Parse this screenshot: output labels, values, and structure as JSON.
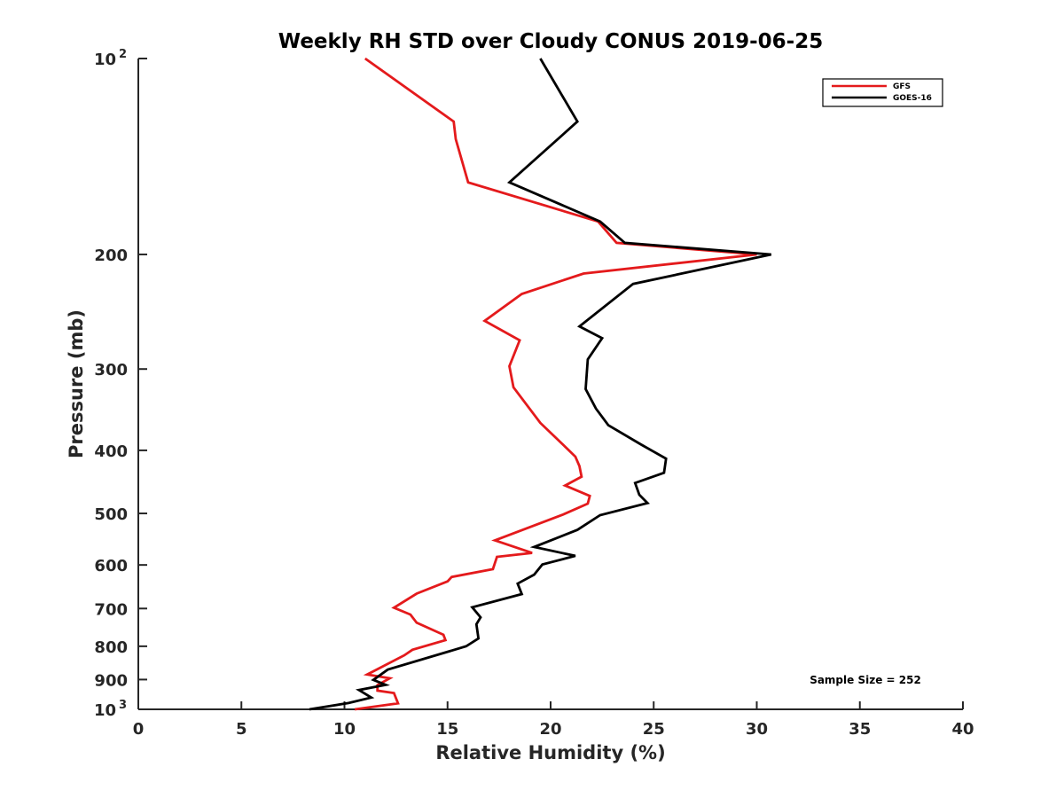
{
  "chart_data": {
    "type": "line",
    "title": "Weekly RH STD over Cloudy CONUS 2019-06-25",
    "xlabel": "Relative Humidity (%)",
    "ylabel": "Pressure (mb)",
    "xlim": [
      0,
      40
    ],
    "ylim": [
      100,
      1000
    ],
    "y_scale": "log",
    "y_reversed": true,
    "grid": false,
    "x_ticks": [
      {
        "value": 0,
        "label": "0"
      },
      {
        "value": 5,
        "label": "5"
      },
      {
        "value": 10,
        "label": "10"
      },
      {
        "value": 15,
        "label": "15"
      },
      {
        "value": 20,
        "label": "20"
      },
      {
        "value": 25,
        "label": "25"
      },
      {
        "value": 30,
        "label": "30"
      },
      {
        "value": 35,
        "label": "35"
      },
      {
        "value": 40,
        "label": "40"
      }
    ],
    "y_ticks": [
      {
        "value": 100,
        "label": "10",
        "sup": "2"
      },
      {
        "value": 200,
        "label": "200"
      },
      {
        "value": 300,
        "label": "300"
      },
      {
        "value": 400,
        "label": "400"
      },
      {
        "value": 500,
        "label": "500"
      },
      {
        "value": 600,
        "label": "600"
      },
      {
        "value": 700,
        "label": "700"
      },
      {
        "value": 800,
        "label": "800"
      },
      {
        "value": 900,
        "label": "900"
      },
      {
        "value": 1000,
        "label": "10",
        "sup": "3"
      }
    ],
    "legend_position": "top-right",
    "annotation": "Sample Size = 252",
    "series": [
      {
        "name": "GFS",
        "color": "#e41a1c",
        "points": [
          [
            11.0,
            100
          ],
          [
            15.3,
            125
          ],
          [
            15.4,
            133
          ],
          [
            16.0,
            155
          ],
          [
            22.3,
            178
          ],
          [
            23.2,
            192
          ],
          [
            30.0,
            200
          ],
          [
            21.6,
            214
          ],
          [
            18.6,
            230
          ],
          [
            16.8,
            253
          ],
          [
            18.5,
            271
          ],
          [
            18.0,
            297
          ],
          [
            18.2,
            320
          ],
          [
            19.5,
            363
          ],
          [
            20.6,
            392
          ],
          [
            21.2,
            409
          ],
          [
            21.4,
            423
          ],
          [
            21.5,
            439
          ],
          [
            20.7,
            453
          ],
          [
            21.9,
            470
          ],
          [
            21.8,
            483
          ],
          [
            20.6,
            502
          ],
          [
            17.3,
            550
          ],
          [
            19.1,
            575
          ],
          [
            17.4,
            583
          ],
          [
            17.2,
            609
          ],
          [
            15.2,
            626
          ],
          [
            15.0,
            636
          ],
          [
            13.5,
            664
          ],
          [
            12.4,
            698
          ],
          [
            13.2,
            715
          ],
          [
            13.5,
            736
          ],
          [
            14.8,
            768
          ],
          [
            14.9,
            783
          ],
          [
            13.3,
            810
          ],
          [
            12.9,
            826
          ],
          [
            11.1,
            884
          ],
          [
            12.2,
            896
          ],
          [
            11.6,
            918
          ],
          [
            11.6,
            936
          ],
          [
            12.4,
            944
          ],
          [
            12.6,
            979
          ],
          [
            10.5,
            1000
          ]
        ]
      },
      {
        "name": "GOES-16",
        "color": "#000000",
        "points": [
          [
            19.5,
            100
          ],
          [
            21.3,
            125
          ],
          [
            18.0,
            155
          ],
          [
            22.4,
            178
          ],
          [
            23.6,
            192
          ],
          [
            30.7,
            200
          ],
          [
            24.0,
            222
          ],
          [
            21.4,
            258
          ],
          [
            22.5,
            269
          ],
          [
            21.8,
            290
          ],
          [
            21.7,
            322
          ],
          [
            22.2,
            345
          ],
          [
            22.8,
            366
          ],
          [
            24.4,
            392
          ],
          [
            25.6,
            412
          ],
          [
            25.5,
            433
          ],
          [
            24.1,
            449
          ],
          [
            24.3,
            468
          ],
          [
            24.7,
            482
          ],
          [
            22.4,
            503
          ],
          [
            21.3,
            530
          ],
          [
            19.2,
            563
          ],
          [
            21.2,
            581
          ],
          [
            19.6,
            599
          ],
          [
            19.2,
            621
          ],
          [
            18.4,
            641
          ],
          [
            18.6,
            665
          ],
          [
            16.2,
            697
          ],
          [
            16.6,
            722
          ],
          [
            16.4,
            740
          ],
          [
            16.5,
            778
          ],
          [
            15.9,
            800
          ],
          [
            12.1,
            869
          ],
          [
            11.4,
            901
          ],
          [
            12.0,
            917
          ],
          [
            10.7,
            934
          ],
          [
            11.3,
            959
          ],
          [
            10.2,
            978
          ],
          [
            8.3,
            1000
          ]
        ]
      }
    ]
  }
}
